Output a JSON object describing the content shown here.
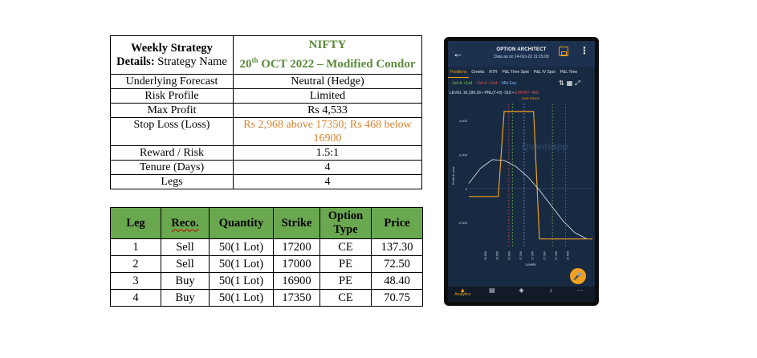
{
  "details": {
    "header_label_bold": "Weekly Strategy Details:",
    "header_label_rest": " Strategy Name",
    "header_value_line1": "NIFTY",
    "header_value_day": "20",
    "header_value_sup": "th",
    "header_value_rest": " OCT 2022 – Modified Condor",
    "rows": [
      {
        "label": "Underlying Forecast",
        "value": "Neutral (Hedge)"
      },
      {
        "label": "Risk Profile",
        "value": "Limited"
      },
      {
        "label": "Max Profit",
        "value": "Rs 4,533"
      },
      {
        "label": "Stop Loss (Loss)",
        "value": "Rs 2,968 above 17350; Rs 468 below 16900"
      },
      {
        "label": "Reward / Risk",
        "value": "1.5:1"
      },
      {
        "label": "Tenure (Days)",
        "value": "4"
      },
      {
        "label": "Legs",
        "value": "4"
      }
    ]
  },
  "legs": {
    "headers": {
      "leg": "Leg",
      "reco": "Reco.",
      "quantity": "Quantity",
      "strike": "Strike",
      "type": "Option Type",
      "price": "Price"
    },
    "rows": [
      {
        "leg": "1",
        "reco": "Sell",
        "quantity": "50(1 Lot)",
        "strike": "17200",
        "type": "CE",
        "price": "137.30"
      },
      {
        "leg": "2",
        "reco": "Sell",
        "quantity": "50(1 Lot)",
        "strike": "17000",
        "type": "PE",
        "price": "72.50"
      },
      {
        "leg": "3",
        "reco": "Buy",
        "quantity": "50(1 Lot)",
        "strike": "16900",
        "type": "PE",
        "price": "48.40"
      },
      {
        "leg": "4",
        "reco": "Buy",
        "quantity": "50(1 Lot)",
        "strike": "17350",
        "type": "CE",
        "price": "70.75"
      }
    ]
  },
  "phone": {
    "title": "OPTION ARCHITECT",
    "subtitle": "Data as on 14-Oct-22 11:15:00",
    "tabs": [
      "Positions",
      "Greeks",
      "RTR",
      "P&L Time Spot",
      "P&L IV Spot",
      "P&L Time"
    ],
    "legend": {
      "sd1": "- 1sd & +1sd",
      "sd2": "- 2sd & +2sd",
      "mkt": "- Mkt Exp"
    },
    "level": "LEVEL 16,199.16",
    "pnl": "PNL(T+0) -310",
    "expiry": "EXPIRY -468",
    "fair_price": "FAIR PRICE",
    "watermark": "Quantsapp",
    "bottom_label": "Analytics",
    "colors": {
      "accent": "#f0a020",
      "background": "#172a42",
      "header_green": "#6aa84f",
      "title_green": "#5a8a3a",
      "stoploss_orange": "#d9812b"
    },
    "icons": [
      "back-arrow-icon",
      "save-icon",
      "more-icon",
      "sort-icon",
      "grid-icon",
      "expand-icon",
      "analytics-icon",
      "calculator-icon",
      "network-icon",
      "bell-icon",
      "more-horizontal-icon",
      "mic-icon"
    ]
  },
  "chart_data": {
    "type": "line",
    "ylabel": "Profit & Loss",
    "xlabel": "Levels",
    "y_ticks": [
      "4,000",
      "2,000",
      "0",
      "-2,000"
    ],
    "x_ticks": [
      "16,800",
      "16,900",
      "17,000",
      "17,100",
      "17,200",
      "17,300",
      "17,400",
      "17,500"
    ],
    "ylim": [
      -3500,
      5000
    ],
    "series": [
      {
        "name": "EXPIRY",
        "color": "#f0a020",
        "x": [
          16650,
          16900,
          16950,
          17000,
          17200,
          17250,
          17350,
          17700
        ],
        "y": [
          -468,
          -468,
          4533,
          4533,
          4533,
          -2968,
          -2968,
          -2968
        ]
      },
      {
        "name": "PNL(T+0)",
        "color": "#e8ecf2",
        "x": [
          16650,
          16750,
          16850,
          16950,
          17050,
          17150,
          17250,
          17350,
          17450,
          17550,
          17650
        ],
        "y": [
          300,
          1200,
          1700,
          1650,
          1300,
          700,
          -100,
          -1000,
          -1900,
          -2600,
          -2950
        ]
      }
    ]
  }
}
